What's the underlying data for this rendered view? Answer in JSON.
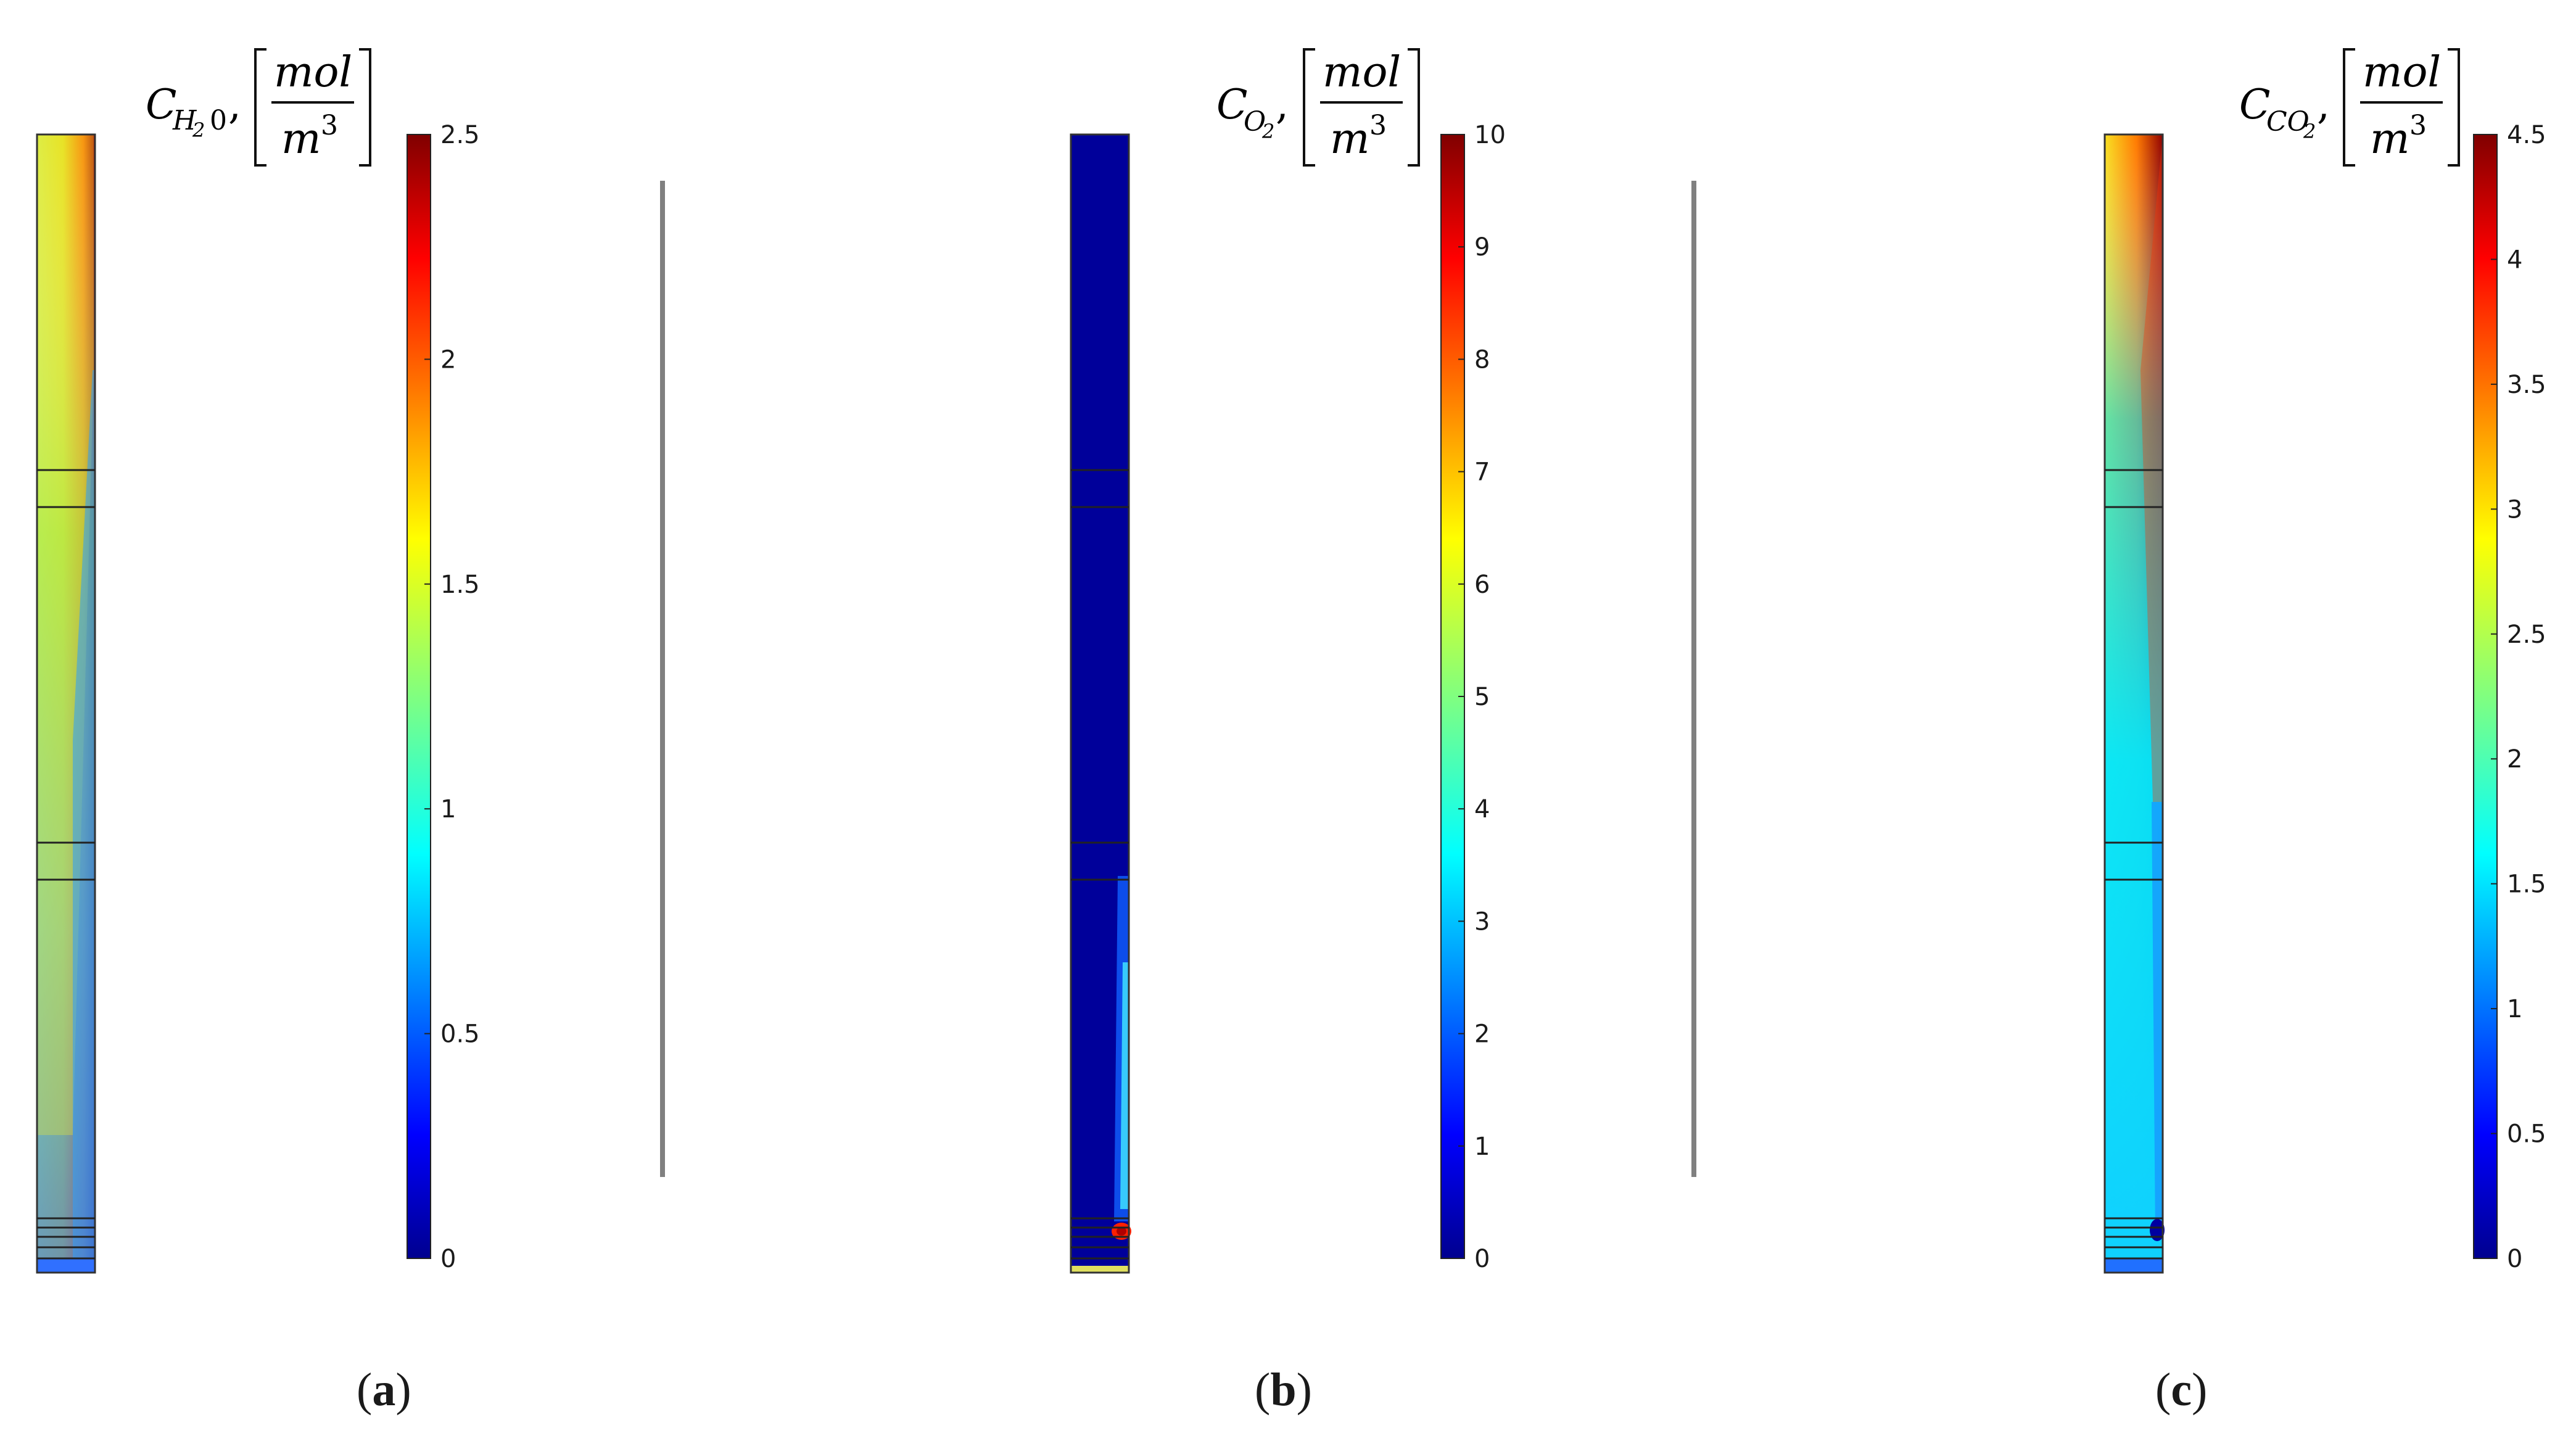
{
  "panels": [
    {
      "caption_letter": "a",
      "species_sub": "H",
      "species_sub2": "2",
      "species_tail": "0",
      "unit_num": "mol",
      "unit_den": "m",
      "unit_exp": "3",
      "field": "h2o"
    },
    {
      "caption_letter": "b",
      "species_sub": "O",
      "species_sub2": "2",
      "species_tail": "",
      "unit_num": "mol",
      "unit_den": "m",
      "unit_exp": "3",
      "field": "o2"
    },
    {
      "caption_letter": "c",
      "species_sub": "CO",
      "species_sub2": "2",
      "species_tail": "",
      "unit_num": "mol",
      "unit_den": "m",
      "unit_exp": "3",
      "field": "co2"
    }
  ],
  "chart_data": [
    {
      "type": "heatmap",
      "title": "C_{H20}, [mol/m^3]",
      "colormap": "jet",
      "colorbar_range": [
        0,
        2.5
      ],
      "colorbar_ticks": [
        "0",
        "0.5",
        "1",
        "1.5",
        "2",
        "2.5"
      ],
      "field_description": "left side ~1.5 (yellow-green), right edge ~2.5 (dark red) at top, ~0.8 (cyan/blue) near lower right"
    },
    {
      "type": "heatmap",
      "title": "C_{O2}, [mol/m^3]",
      "colormap": "jet",
      "colorbar_range": [
        0,
        10
      ],
      "colorbar_ticks": [
        "0",
        "1",
        "2",
        "3",
        "4",
        "5",
        "6",
        "7",
        "8",
        "9",
        "10"
      ],
      "field_description": "mostly ~0 (dark blue); small hot spot ~9 near bottom right"
    },
    {
      "type": "heatmap",
      "title": "C_{CO2}, [mol/m^3]",
      "colormap": "jet",
      "colorbar_range": [
        0,
        4.5
      ],
      "colorbar_ticks": [
        "0",
        "0.5",
        "1",
        "1.5",
        "2",
        "2.5",
        "3",
        "3.5",
        "4",
        "4.5"
      ],
      "field_description": "top-left ~3 (yellow), right edge ~4.5 (dark red), lower region ~1.7 (cyan)"
    }
  ],
  "colors": {
    "separator": "#808080"
  }
}
